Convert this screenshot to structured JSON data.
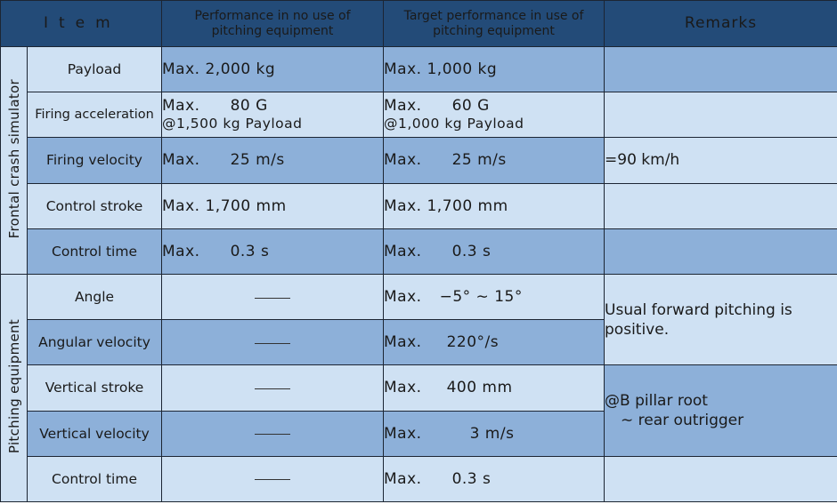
{
  "header": {
    "item": "Item",
    "col_no_pitch": [
      "Performance in no use of",
      "pitching equipment"
    ],
    "col_target": [
      "Target performance in use of",
      "pitching equipment"
    ],
    "remarks": "Remarks"
  },
  "groups": {
    "frontal": "Frontal crash simulator",
    "pitching": "Pitching equipment"
  },
  "frontal_rows": [
    {
      "item": "Payload",
      "no_pitch": "Max. 2,000 kg",
      "target": "Max. 1,000 kg",
      "remarks": ""
    },
    {
      "item": "Firing acceleration",
      "no_pitch_l1": "Max.",
      "no_pitch_l1b": "80 G",
      "no_pitch_l2": "@1,500 kg Payload",
      "target_l1": "Max.",
      "target_l1b": "60 G",
      "target_l2": "@1,000 kg Payload",
      "remarks": ""
    },
    {
      "item": "Firing velocity",
      "no_pitch_a": "Max.",
      "no_pitch_b": "25 m/s",
      "target_a": "Max.",
      "target_b": "25 m/s",
      "remarks": "=90 km/h"
    },
    {
      "item": "Control stroke",
      "no_pitch": "Max. 1,700 mm",
      "target": "Max. 1,700 mm",
      "remarks": ""
    },
    {
      "item": "Control time",
      "no_pitch_a": "Max.",
      "no_pitch_b": "0.3 s",
      "target_a": "Max.",
      "target_b": "0.3 s",
      "remarks": ""
    }
  ],
  "pitching_rows": [
    {
      "item": "Angle",
      "target_a": "Max.",
      "target_b": "−5° ∼ 15°"
    },
    {
      "item": "Angular velocity",
      "target_a": "Max.",
      "target_b": "220°/s"
    },
    {
      "item": "Vertical stroke",
      "target_a": "Max.",
      "target_b": "400 mm"
    },
    {
      "item": "Vertical velocity",
      "target_a": "Max.",
      "target_b": "3 m/s"
    },
    {
      "item": "Control time",
      "target_a": "Max.",
      "target_b": "0.3 s"
    }
  ],
  "pitching_remarks": {
    "angle": [
      "Usual forward pitching is",
      "positive."
    ],
    "vertical": [
      "@B pillar root",
      "∼ rear outrigger"
    ]
  }
}
